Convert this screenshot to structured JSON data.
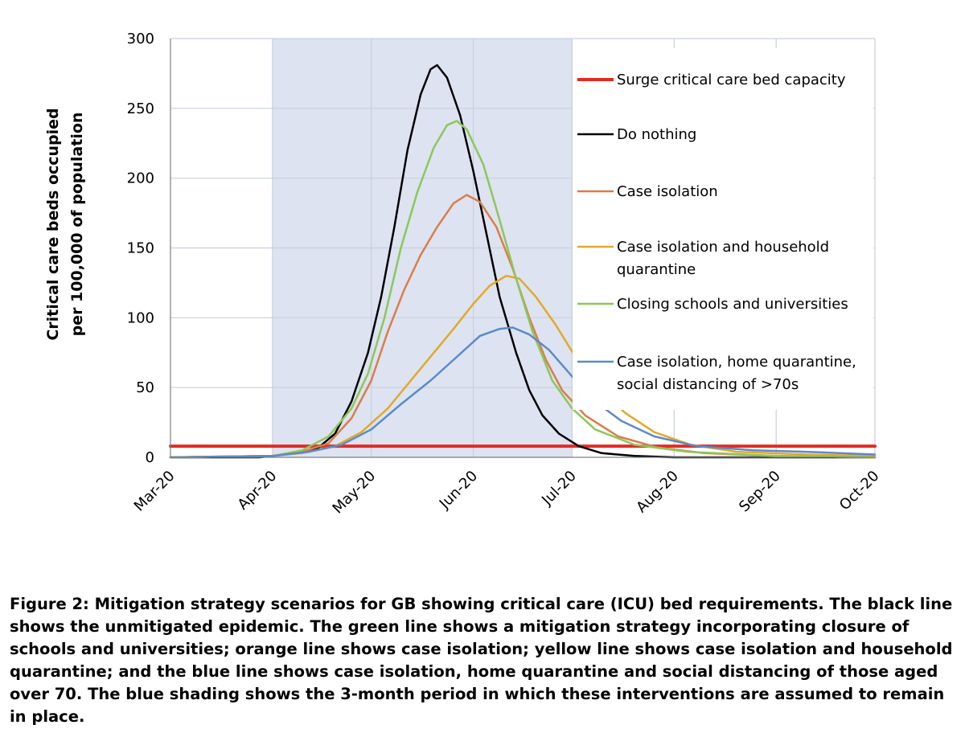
{
  "chart_data": {
    "type": "line",
    "ylabel_line1": "Critical care beds occupied",
    "ylabel_line2": "per 100,000 of population",
    "ylim": [
      0,
      300
    ],
    "y_ticks": [
      "0",
      "50",
      "100",
      "150",
      "200",
      "250",
      "300"
    ],
    "x_start": "2020-03-01",
    "x_end": "2020-10-01",
    "x_ticks": [
      {
        "label": "Mar-20",
        "date": "2020-03-01"
      },
      {
        "label": "Apr-20",
        "date": "2020-04-01"
      },
      {
        "label": "May-20",
        "date": "2020-05-01"
      },
      {
        "label": "Jun-20",
        "date": "2020-06-01"
      },
      {
        "label": "Jul-20",
        "date": "2020-07-01"
      },
      {
        "label": "Aug-20",
        "date": "2020-08-01"
      },
      {
        "label": "Sep-20",
        "date": "2020-09-01"
      },
      {
        "label": "Oct-20",
        "date": "2020-10-01"
      }
    ],
    "grid": true,
    "legend_position": "right",
    "shaded_period": {
      "start": "2020-04-01",
      "end": "2020-07-01",
      "color": "#dde3f1"
    },
    "series": [
      {
        "name": "Surge critical care bed capacity",
        "color": "#e32b24",
        "points": [
          [
            "2020-03-01",
            8
          ],
          [
            "2020-10-01",
            8
          ]
        ]
      },
      {
        "name": "Do nothing",
        "color": "#000000",
        "points": [
          [
            "2020-03-01",
            0
          ],
          [
            "2020-03-28",
            0
          ],
          [
            "2020-04-01",
            1
          ],
          [
            "2020-04-09",
            3
          ],
          [
            "2020-04-15",
            7
          ],
          [
            "2020-04-20",
            17
          ],
          [
            "2020-04-25",
            40
          ],
          [
            "2020-04-30",
            75
          ],
          [
            "2020-05-04",
            115
          ],
          [
            "2020-05-08",
            165
          ],
          [
            "2020-05-12",
            220
          ],
          [
            "2020-05-16",
            260
          ],
          [
            "2020-05-19",
            278
          ],
          [
            "2020-05-21",
            281
          ],
          [
            "2020-05-24",
            272
          ],
          [
            "2020-05-28",
            245
          ],
          [
            "2020-06-01",
            205
          ],
          [
            "2020-06-05",
            160
          ],
          [
            "2020-06-09",
            115
          ],
          [
            "2020-06-14",
            75
          ],
          [
            "2020-06-18",
            48
          ],
          [
            "2020-06-22",
            30
          ],
          [
            "2020-06-27",
            17
          ],
          [
            "2020-07-03",
            8
          ],
          [
            "2020-07-10",
            3
          ],
          [
            "2020-07-20",
            1
          ],
          [
            "2020-08-01",
            0
          ],
          [
            "2020-10-01",
            0
          ]
        ]
      },
      {
        "name": "Case isolation",
        "color": "#db7d4a",
        "points": [
          [
            "2020-03-01",
            0
          ],
          [
            "2020-04-01",
            1
          ],
          [
            "2020-04-10",
            4
          ],
          [
            "2020-04-18",
            10
          ],
          [
            "2020-04-25",
            28
          ],
          [
            "2020-05-01",
            55
          ],
          [
            "2020-05-06",
            90
          ],
          [
            "2020-05-11",
            120
          ],
          [
            "2020-05-16",
            145
          ],
          [
            "2020-05-21",
            165
          ],
          [
            "2020-05-26",
            182
          ],
          [
            "2020-05-30",
            188
          ],
          [
            "2020-06-03",
            183
          ],
          [
            "2020-06-08",
            165
          ],
          [
            "2020-06-13",
            135
          ],
          [
            "2020-06-18",
            100
          ],
          [
            "2020-06-23",
            70
          ],
          [
            "2020-06-28",
            48
          ],
          [
            "2020-07-05",
            30
          ],
          [
            "2020-07-15",
            15
          ],
          [
            "2020-07-27",
            7
          ],
          [
            "2020-08-10",
            3
          ],
          [
            "2020-09-01",
            1
          ],
          [
            "2020-10-01",
            0
          ]
        ]
      },
      {
        "name": "Case isolation and household quarantine",
        "color": "#e2a92a",
        "points": [
          [
            "2020-03-01",
            0
          ],
          [
            "2020-04-01",
            1
          ],
          [
            "2020-04-10",
            3
          ],
          [
            "2020-04-20",
            8
          ],
          [
            "2020-04-28",
            18
          ],
          [
            "2020-05-06",
            35
          ],
          [
            "2020-05-13",
            55
          ],
          [
            "2020-05-20",
            75
          ],
          [
            "2020-05-26",
            92
          ],
          [
            "2020-06-01",
            110
          ],
          [
            "2020-06-06",
            123
          ],
          [
            "2020-06-11",
            130
          ],
          [
            "2020-06-15",
            128
          ],
          [
            "2020-06-20",
            115
          ],
          [
            "2020-06-26",
            95
          ],
          [
            "2020-07-02",
            72
          ],
          [
            "2020-07-09",
            50
          ],
          [
            "2020-07-17",
            32
          ],
          [
            "2020-07-26",
            18
          ],
          [
            "2020-08-06",
            9
          ],
          [
            "2020-08-20",
            4
          ],
          [
            "2020-09-10",
            2
          ],
          [
            "2020-10-01",
            1
          ]
        ]
      },
      {
        "name": "Closing schools and universities",
        "color": "#8cc75a",
        "points": [
          [
            "2020-03-01",
            0
          ],
          [
            "2020-04-01",
            1
          ],
          [
            "2020-04-10",
            5
          ],
          [
            "2020-04-18",
            15
          ],
          [
            "2020-04-25",
            35
          ],
          [
            "2020-04-30",
            60
          ],
          [
            "2020-05-05",
            100
          ],
          [
            "2020-05-10",
            150
          ],
          [
            "2020-05-15",
            190
          ],
          [
            "2020-05-20",
            222
          ],
          [
            "2020-05-24",
            238
          ],
          [
            "2020-05-27",
            241
          ],
          [
            "2020-05-30",
            235
          ],
          [
            "2020-06-04",
            210
          ],
          [
            "2020-06-09",
            170
          ],
          [
            "2020-06-14",
            128
          ],
          [
            "2020-06-19",
            90
          ],
          [
            "2020-06-25",
            55
          ],
          [
            "2020-07-01",
            35
          ],
          [
            "2020-07-08",
            20
          ],
          [
            "2020-07-20",
            9
          ],
          [
            "2020-08-05",
            4
          ],
          [
            "2020-09-01",
            1
          ],
          [
            "2020-10-01",
            0
          ]
        ]
      },
      {
        "name": "Case isolation, home quarantine, social distancing of >70s",
        "color": "#5c8ac8",
        "points": [
          [
            "2020-03-01",
            0
          ],
          [
            "2020-04-01",
            1
          ],
          [
            "2020-04-12",
            4
          ],
          [
            "2020-04-22",
            9
          ],
          [
            "2020-05-01",
            20
          ],
          [
            "2020-05-10",
            38
          ],
          [
            "2020-05-19",
            55
          ],
          [
            "2020-05-27",
            72
          ],
          [
            "2020-06-03",
            87
          ],
          [
            "2020-06-09",
            92
          ],
          [
            "2020-06-13",
            93
          ],
          [
            "2020-06-18",
            88
          ],
          [
            "2020-06-24",
            77
          ],
          [
            "2020-07-01",
            58
          ],
          [
            "2020-07-08",
            40
          ],
          [
            "2020-07-16",
            26
          ],
          [
            "2020-07-26",
            15
          ],
          [
            "2020-08-08",
            8
          ],
          [
            "2020-08-25",
            5
          ],
          [
            "2020-09-10",
            4
          ],
          [
            "2020-10-01",
            2
          ]
        ]
      }
    ],
    "legend": [
      {
        "lines": [
          "Surge critical care bed capacity"
        ],
        "color": "#e32b24",
        "width": 4
      },
      {
        "lines": [
          "Do nothing"
        ],
        "color": "#000000",
        "width": 2.5
      },
      {
        "lines": [
          "Case isolation"
        ],
        "color": "#db7d4a",
        "width": 2.5
      },
      {
        "lines": [
          "Case isolation and household",
          "quarantine"
        ],
        "color": "#e2a92a",
        "width": 2.5
      },
      {
        "lines": [
          "Closing schools and universities"
        ],
        "color": "#8cc75a",
        "width": 2.5
      },
      {
        "lines": [
          "Case isolation, home quarantine,",
          "social distancing of >70s"
        ],
        "color": "#5c8ac8",
        "width": 2.5
      }
    ]
  },
  "caption": {
    "text": "Figure 2: Mitigation strategy scenarios for GB showing critical care (ICU) bed requirements. The black line shows the unmitigated epidemic. The green line shows a mitigation strategy incorporating closure of schools and universities; orange line shows case isolation; yellow line shows case isolation and household quarantine; and the blue line shows case isolation, home quarantine and social distancing of those aged over 70. The blue shading shows the 3-month period in which these interventions are assumed to remain in place."
  }
}
